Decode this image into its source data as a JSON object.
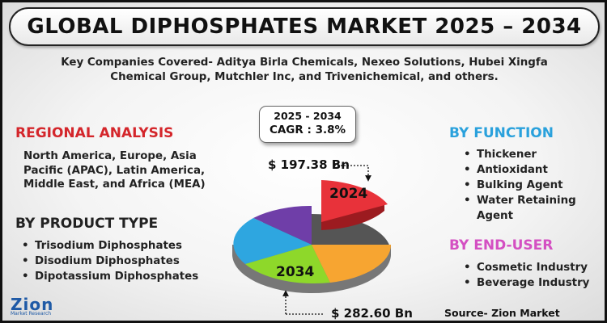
{
  "title": "GLOBAL DIPHOSPHATES MARKET 2025 – 2034",
  "companies": "Key Companies Covered- Aditya Birla Chemicals, Nexeo Solutions, Hubei Xingfa Chemical Group, Mutchler Inc, and Trivenichemical, and others.",
  "cagr": {
    "years": "2025 - 2034",
    "value": "CAGR : 3.8%"
  },
  "regional": {
    "heading": "REGIONAL ANALYSIS",
    "text": "North America, Europe, Asia Pacific (APAC), Latin America, Middle East, and Africa (MEA)"
  },
  "product_type": {
    "heading": "BY PRODUCT TYPE",
    "items": [
      "Trisodium Diphosphates",
      "Disodium Diphosphates",
      "Dipotassium Diphosphates"
    ]
  },
  "function": {
    "heading": "BY FUNCTION",
    "items": [
      "Thickener",
      "Antioxidant",
      "Bulking Agent",
      "Water Retaining Agent"
    ]
  },
  "end_user": {
    "heading": "BY END-USER",
    "items": [
      "Cosmetic Industry",
      "Beverage Industry"
    ]
  },
  "pie": {
    "label_2024": "2024",
    "label_2034": "2034",
    "value_2024": "$ 197.38 Bn",
    "value_2034": "$ 282.60 Bn",
    "colors": {
      "red": "#e8323a",
      "orange": "#f7a531",
      "green": "#8ed82a",
      "blue": "#2ea6e0",
      "purple": "#6f3ea8"
    }
  },
  "logo": {
    "main": "Zion",
    "sub": "Market Research"
  },
  "source": "Source- Zion Market Research"
}
